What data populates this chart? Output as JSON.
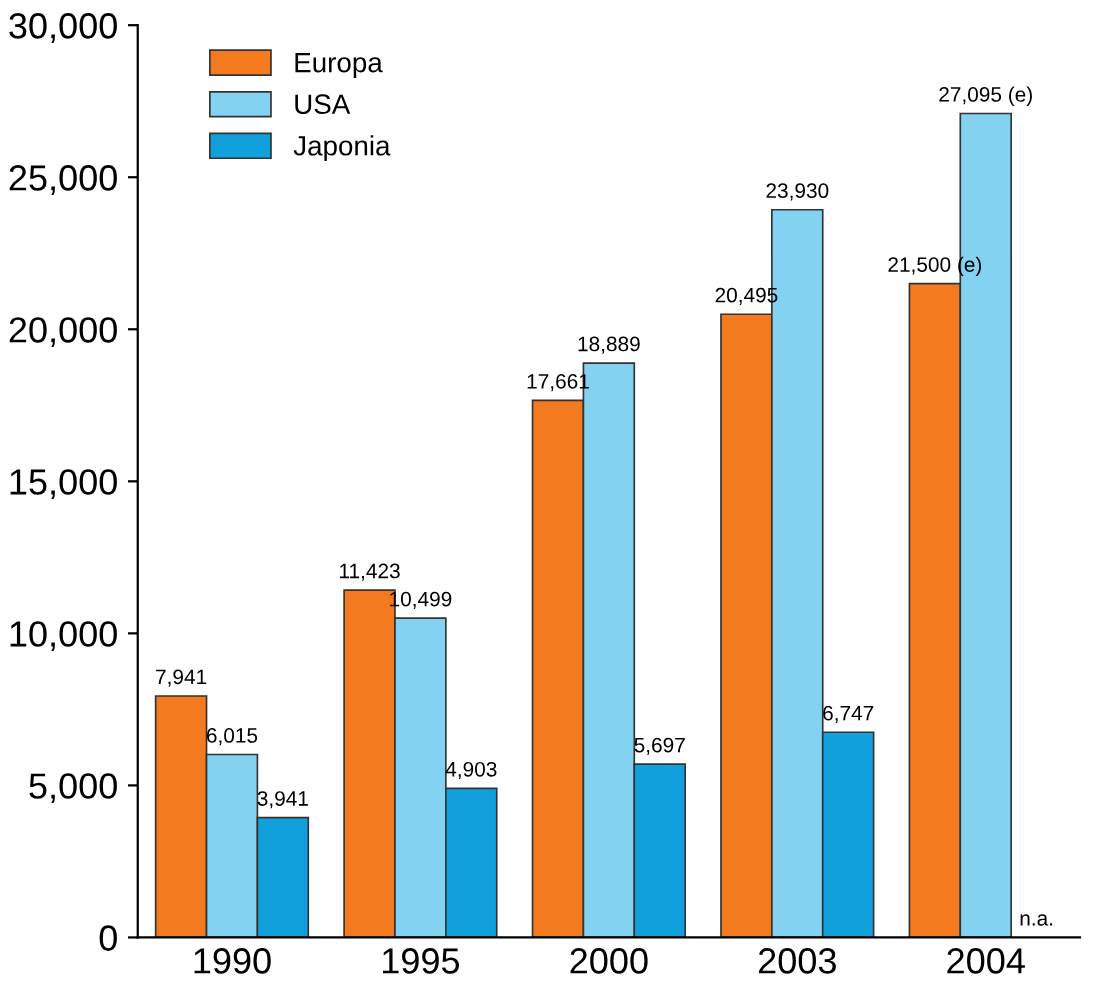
{
  "chart_data": {
    "type": "bar",
    "categories": [
      "1990",
      "1995",
      "2000",
      "2003",
      "2004"
    ],
    "series": [
      {
        "name": "Europa",
        "color": "#f47a20",
        "values": [
          7941,
          11423,
          17661,
          20495,
          21500
        ],
        "value_labels": [
          "7,941",
          "11,423",
          "17,661",
          "20,495",
          "21,500 (e)"
        ]
      },
      {
        "name": "USA",
        "color": "#84d2f2",
        "values": [
          6015,
          10499,
          18889,
          23930,
          27095
        ],
        "value_labels": [
          "6,015",
          "10,499",
          "18,889",
          "23,930",
          "27,095 (e)"
        ]
      },
      {
        "name": "Japonia",
        "color": "#12a0dc",
        "values": [
          3941,
          4903,
          5697,
          6747,
          null
        ],
        "value_labels": [
          "3,941",
          "4,903",
          "5,697",
          "6,747",
          "n.a."
        ]
      }
    ],
    "ylim": [
      0,
      30000
    ],
    "yticks": [
      {
        "value": 0,
        "label": "0"
      },
      {
        "value": 5000,
        "label": "5,000"
      },
      {
        "value": 10000,
        "label": "10,000"
      },
      {
        "value": 15000,
        "label": "15,000"
      },
      {
        "value": 20000,
        "label": "20,000"
      },
      {
        "value": 25000,
        "label": "25,000"
      },
      {
        "value": 30000,
        "label": "30,000"
      }
    ],
    "legend": "top left",
    "grid": false
  }
}
